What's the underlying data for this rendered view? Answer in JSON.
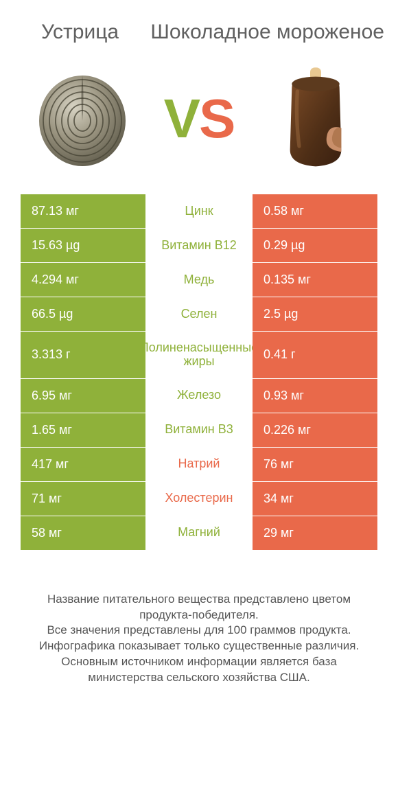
{
  "colors": {
    "green": "#8fb13a",
    "orange": "#e9694a",
    "text": "#555555",
    "title": "#606060",
    "white": "#ffffff"
  },
  "left_title": "Устрица",
  "right_title": "Шоколадное мороженое",
  "vs_left": "V",
  "vs_right": "S",
  "rows": [
    {
      "left": "87.13 мг",
      "mid": "Цинк",
      "right": "0.58 мг",
      "winner": "left"
    },
    {
      "left": "15.63 µg",
      "mid": "Витамин B12",
      "right": "0.29 µg",
      "winner": "left"
    },
    {
      "left": "4.294 мг",
      "mid": "Медь",
      "right": "0.135 мг",
      "winner": "left"
    },
    {
      "left": "66.5 µg",
      "mid": "Селен",
      "right": "2.5 µg",
      "winner": "left"
    },
    {
      "left": "3.313 г",
      "mid": "Полиненасыщенные жиры",
      "right": "0.41 г",
      "winner": "left"
    },
    {
      "left": "6.95 мг",
      "mid": "Железо",
      "right": "0.93 мг",
      "winner": "left"
    },
    {
      "left": "1.65 мг",
      "mid": "Витамин B3",
      "right": "0.226 мг",
      "winner": "left"
    },
    {
      "left": "417 мг",
      "mid": "Натрий",
      "right": "76 мг",
      "winner": "right"
    },
    {
      "left": "71 мг",
      "mid": "Холестерин",
      "right": "34 мг",
      "winner": "right"
    },
    {
      "left": "58 мг",
      "mid": "Магний",
      "right": "29 мг",
      "winner": "left"
    }
  ],
  "footer_lines": [
    "Название питательного вещества представлено цветом продукта-победителя.",
    "Все значения представлены для 100 граммов продукта.",
    "Инфографика показывает только существенные различия.",
    "Основным источником информации является база министерства сельского хозяйства США."
  ],
  "icons": {
    "left": "oyster-icon",
    "right": "chocolate-icecream-icon"
  }
}
